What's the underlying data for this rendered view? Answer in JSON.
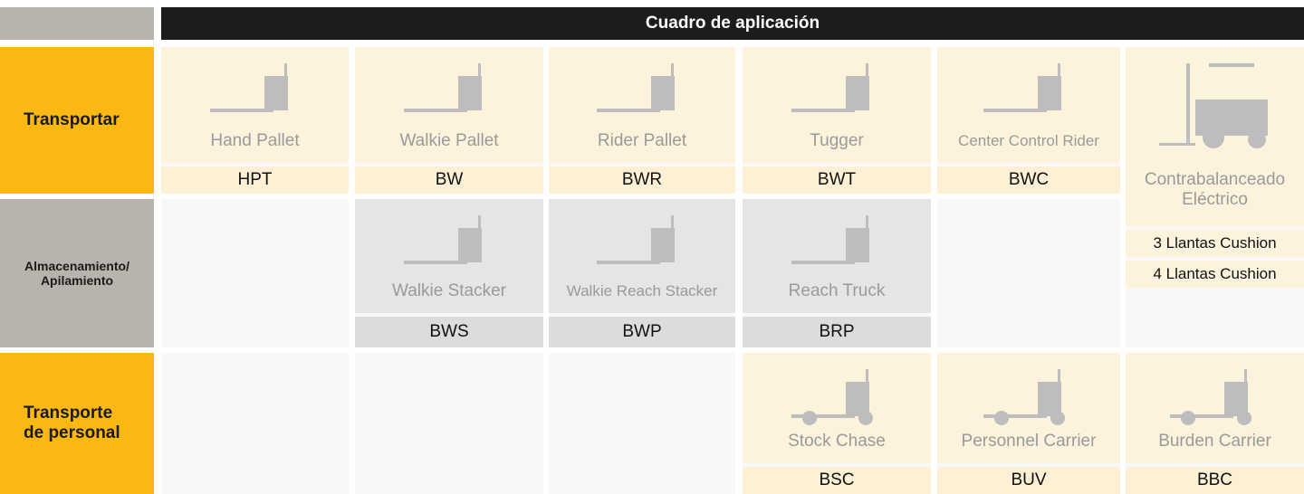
{
  "header": {
    "title": "Cuadro de aplicación"
  },
  "rows": [
    {
      "label": "Transportar"
    },
    {
      "label": "Almacenamiento/ Apilamiento"
    },
    {
      "label": "Transporte de personal"
    }
  ],
  "products": [
    {
      "name": "Hand Pallet",
      "code": "HPT"
    },
    {
      "name": "Walkie Pallet",
      "code": "BW"
    },
    {
      "name": "Rider Pallet",
      "code": "BWR"
    },
    {
      "name": "Tugger",
      "code": "BWT"
    },
    {
      "name": "Center Control Rider",
      "code": "BWC"
    },
    {
      "name": "Walkie Stacker",
      "code": "BWS"
    },
    {
      "name": "Walkie Reach Stacker",
      "code": "BWP"
    },
    {
      "name": "Reach Truck",
      "code": "BRP"
    },
    {
      "name": "Stock Chase",
      "code": "BSC"
    },
    {
      "name": "Personnel Carrier",
      "code": "BUV"
    },
    {
      "name": "Burden Carrier",
      "code": "BBC"
    }
  ],
  "counterbalance": {
    "name": "Contrabalanceado Eléctrico",
    "options": [
      "3 Llantas Cushion",
      "4 Llantas Cushion"
    ]
  }
}
